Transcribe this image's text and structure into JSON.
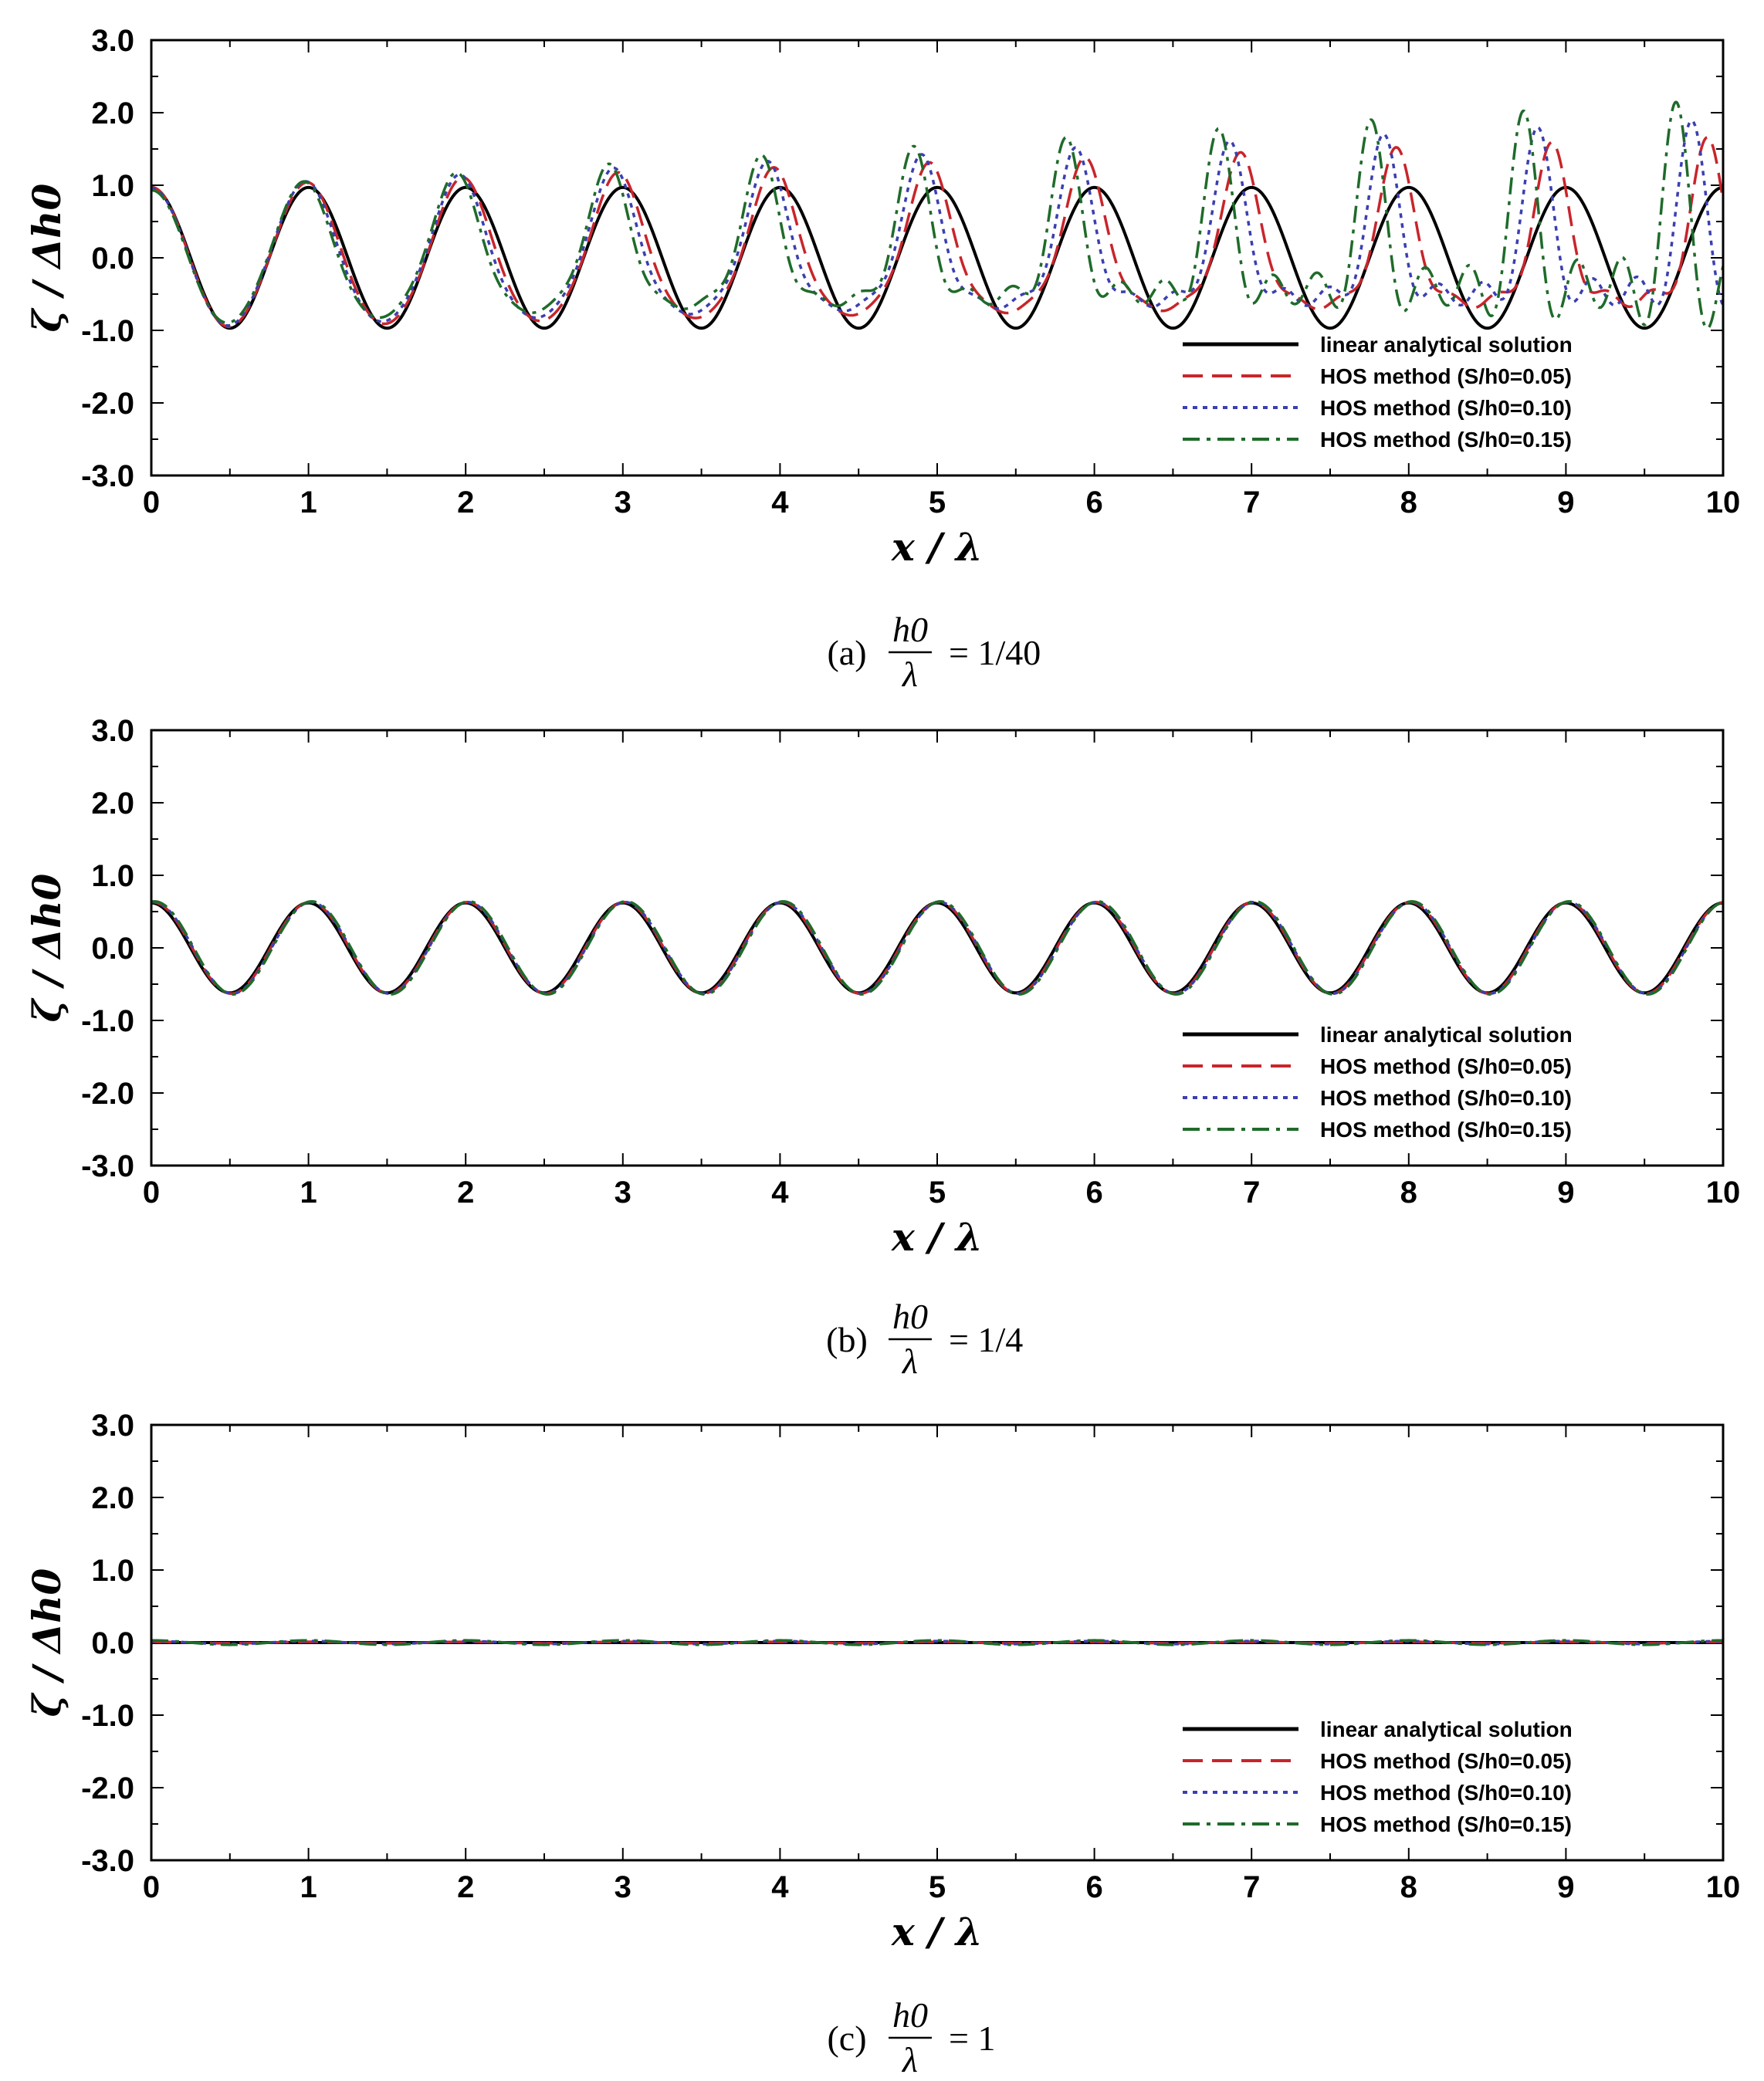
{
  "chart_data": [
    {
      "type": "line",
      "xlabel": "x / λ",
      "ylabel": "ζ / Δh0",
      "xlim": [
        0,
        10
      ],
      "ylim": [
        -3.0,
        3.0
      ],
      "x_ticks": [
        "0",
        "1",
        "2",
        "3",
        "4",
        "5",
        "6",
        "7",
        "8",
        "9",
        "10"
      ],
      "y_ticks": [
        "3.0",
        "2.0",
        "1.0",
        "0.0",
        "-1.0",
        "-2.0",
        "-3.0"
      ],
      "legend_position": "bottom-right",
      "caption": {
        "prefix": "(a)",
        "numerator": "h0",
        "denominator": "λ",
        "value": "= 1/40"
      },
      "series": [
        {
          "name": "linear analytical solution",
          "style": "solid",
          "color": "#000000",
          "model": {
            "amplitude": 0.97,
            "period": 1.0,
            "phase": 0.0,
            "steepness": 0.0,
            "decay": 0.0
          }
        },
        {
          "name": "HOS method (S/h0=0.05)",
          "style": "dashed",
          "color": "#c8252b",
          "model": {
            "amplitude": 0.97,
            "period": 0.99,
            "phase": 0.0,
            "steepness": 1.6,
            "decay": 0.0
          }
        },
        {
          "name": "HOS method (S/h0=0.10)",
          "style": "dotted",
          "color": "#3b3fb0",
          "model": {
            "amplitude": 0.96,
            "period": 0.98,
            "phase": 0.0,
            "steepness": 2.2,
            "decay": 0.0
          }
        },
        {
          "name": "HOS method (S/h0=0.15)",
          "style": "dashdot",
          "color": "#1f6b2a",
          "model": {
            "amplitude": 0.93,
            "period": 0.97,
            "phase": 0.0,
            "steepness": 3.0,
            "decay": 0.0
          }
        }
      ]
    },
    {
      "type": "line",
      "xlabel": "x / λ",
      "ylabel": "ζ / Δh0",
      "xlim": [
        0,
        10
      ],
      "ylim": [
        -3.0,
        3.0
      ],
      "x_ticks": [
        "0",
        "1",
        "2",
        "3",
        "4",
        "5",
        "6",
        "7",
        "8",
        "9",
        "10"
      ],
      "y_ticks": [
        "3.0",
        "2.0",
        "1.0",
        "0.0",
        "-1.0",
        "-2.0",
        "-3.0"
      ],
      "legend_position": "bottom-right",
      "caption": {
        "prefix": "(b)",
        "numerator": "h0",
        "denominator": "λ",
        "value": "= 1/4"
      },
      "series": [
        {
          "name": "linear analytical solution",
          "style": "solid",
          "color": "#000000",
          "model": {
            "amplitude": 0.62,
            "period": 1.0,
            "phase": 0.0,
            "steepness": 0.0,
            "decay": 0.0
          }
        },
        {
          "name": "HOS method (S/h0=0.05)",
          "style": "dashed",
          "color": "#c8252b",
          "model": {
            "amplitude": 0.63,
            "period": 1.0,
            "phase": 0.01,
            "steepness": 0.0,
            "decay": 0.0
          }
        },
        {
          "name": "HOS method (S/h0=0.10)",
          "style": "dotted",
          "color": "#3b3fb0",
          "model": {
            "amplitude": 0.63,
            "period": 1.0,
            "phase": 0.015,
            "steepness": 0.0,
            "decay": 0.0
          }
        },
        {
          "name": "HOS method (S/h0=0.15)",
          "style": "dashdot",
          "color": "#1f6b2a",
          "model": {
            "amplitude": 0.64,
            "period": 1.0,
            "phase": 0.02,
            "steepness": 0.0,
            "decay": 0.0
          }
        }
      ]
    },
    {
      "type": "line",
      "xlabel": "x / λ",
      "ylabel": "ζ / Δh0",
      "xlim": [
        0,
        10
      ],
      "ylim": [
        -3.0,
        3.0
      ],
      "x_ticks": [
        "0",
        "1",
        "2",
        "3",
        "4",
        "5",
        "6",
        "7",
        "8",
        "9",
        "10"
      ],
      "y_ticks": [
        "3.0",
        "2.0",
        "1.0",
        "0.0",
        "-1.0",
        "-2.0",
        "-3.0"
      ],
      "legend_position": "bottom-right",
      "caption": {
        "prefix": "(c)",
        "numerator": "h0",
        "denominator": "λ",
        "value": "= 1"
      },
      "series": [
        {
          "name": "linear analytical solution",
          "style": "solid",
          "color": "#000000",
          "model": {
            "amplitude": 0.0,
            "period": 1.0,
            "phase": 0.0,
            "steepness": 0.0,
            "decay": 0.0
          }
        },
        {
          "name": "HOS method (S/h0=0.05)",
          "style": "dashed",
          "color": "#c8252b",
          "model": {
            "amplitude": 0.01,
            "period": 1.0,
            "phase": 0.0,
            "steepness": 0.0,
            "decay": 0.0
          }
        },
        {
          "name": "HOS method (S/h0=0.10)",
          "style": "dotted",
          "color": "#3b3fb0",
          "model": {
            "amplitude": 0.02,
            "period": 1.0,
            "phase": 0.0,
            "steepness": 0.0,
            "decay": 0.0
          }
        },
        {
          "name": "HOS method (S/h0=0.15)",
          "style": "dashdot",
          "color": "#1f6b2a",
          "model": {
            "amplitude": 0.03,
            "period": 1.0,
            "phase": 0.0,
            "steepness": 0.0,
            "decay": 0.0
          }
        }
      ]
    }
  ]
}
